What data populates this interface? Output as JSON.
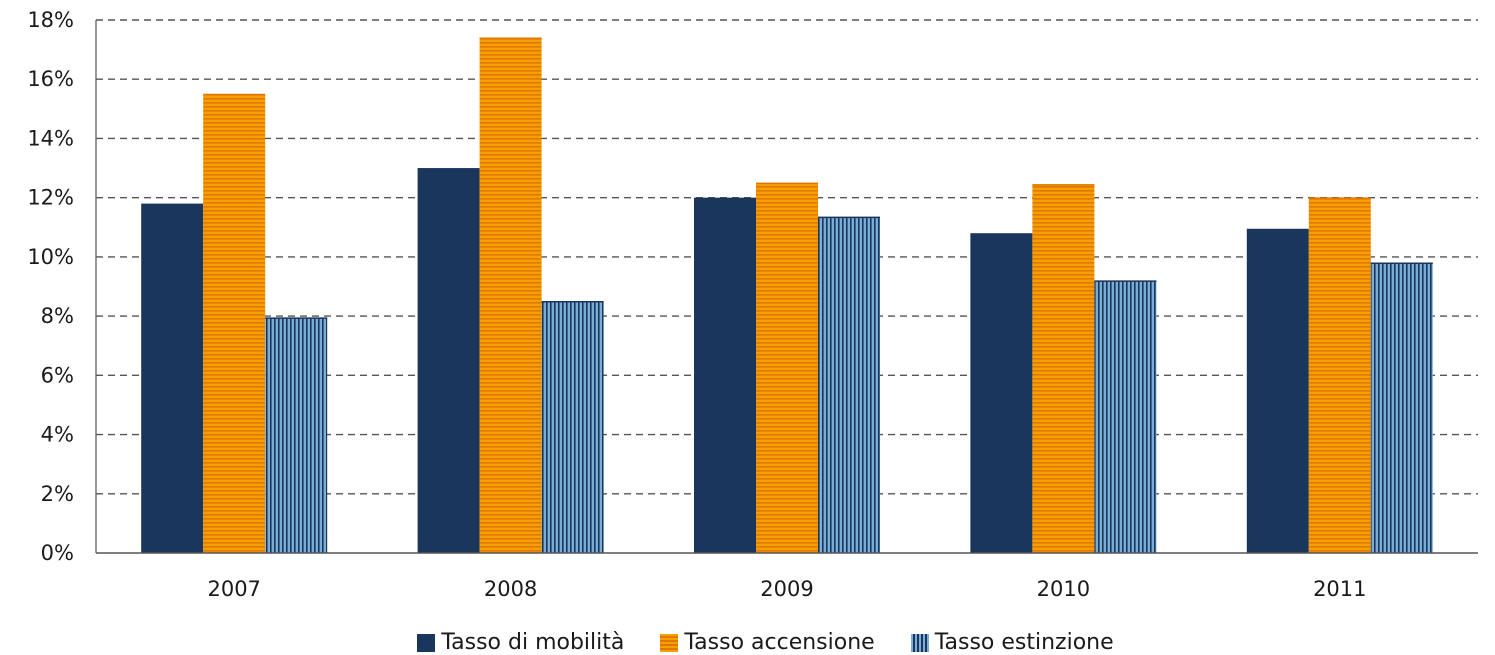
{
  "chart_data": {
    "type": "bar",
    "categories": [
      "2007",
      "2008",
      "2009",
      "2010",
      "2011"
    ],
    "series": [
      {
        "name": "Tasso di mobilità",
        "values": [
          11.8,
          13.0,
          12.0,
          10.8,
          10.95
        ],
        "color": "#1b365d",
        "pattern": "solid"
      },
      {
        "name": "Tasso accensione",
        "values": [
          15.5,
          17.4,
          12.5,
          12.45,
          12.0
        ],
        "color": "#f5a000",
        "stripe_color": "#e07800",
        "pattern": "horizontal-stripes"
      },
      {
        "name": "Tasso estinzione",
        "values": [
          7.95,
          8.5,
          11.35,
          9.2,
          9.8
        ],
        "color": "#7aaed6",
        "stripe_color": "#1b365d",
        "pattern": "vertical-stripes"
      }
    ],
    "ylim": [
      0,
      18
    ],
    "yticks": [
      "0%",
      "2%",
      "4%",
      "6%",
      "8%",
      "10%",
      "12%",
      "14%",
      "16%",
      "18%"
    ],
    "grid": true,
    "grid_style": "dashed",
    "legend_position": "bottom",
    "title": "",
    "xlabel": "",
    "ylabel": ""
  }
}
